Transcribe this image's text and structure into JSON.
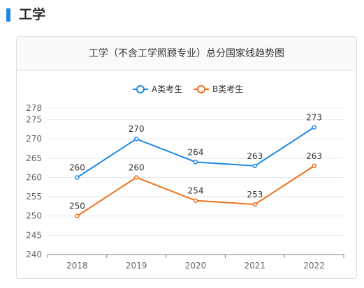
{
  "section": {
    "title": "工学",
    "accent_color": "#1e88e5"
  },
  "chart_data": {
    "type": "line",
    "title": "工学（不含工学照顾专业）总分国家线趋势图",
    "categories": [
      "2018",
      "2019",
      "2020",
      "2021",
      "2022"
    ],
    "series": [
      {
        "name": "A类考生",
        "color": "#1e88e5",
        "values": [
          260,
          270,
          264,
          263,
          273
        ]
      },
      {
        "name": "B类考生",
        "color": "#f27018",
        "values": [
          250,
          260,
          254,
          253,
          263
        ]
      }
    ],
    "y_ticks": [
      240,
      245,
      250,
      255,
      260,
      265,
      270,
      275,
      278
    ],
    "ylim": [
      240,
      278
    ],
    "xlabel": "",
    "ylabel": "",
    "grid": true,
    "legend_position": "top-center"
  }
}
